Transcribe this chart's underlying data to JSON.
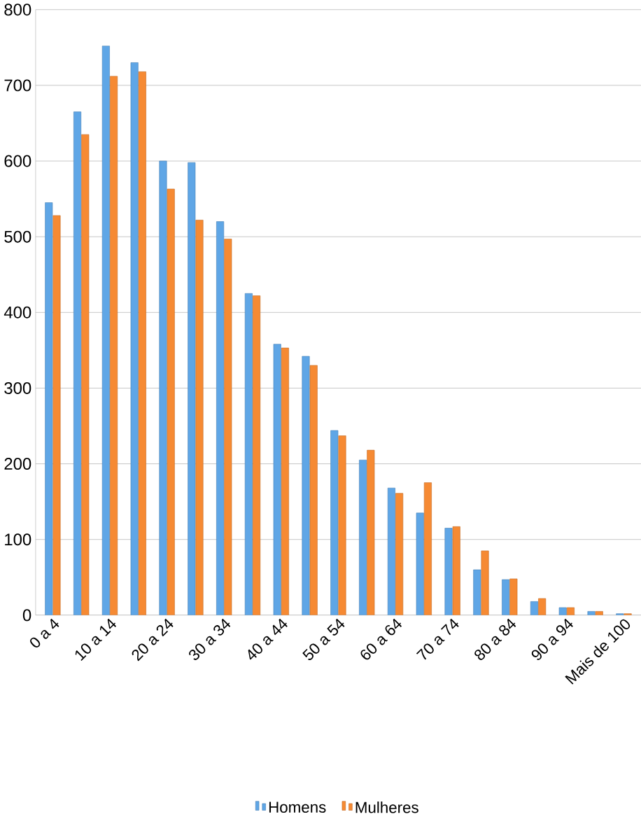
{
  "chart_data": {
    "type": "bar",
    "categories": [
      "0 a 4",
      null,
      "10 a 14",
      null,
      "20 a 24",
      null,
      "30 a 34",
      null,
      "40 a 44",
      null,
      "50 a 54",
      null,
      "60 a 64",
      null,
      "70 a 74",
      null,
      "80 a 84",
      null,
      "90 a 94",
      null,
      "Mais de 100"
    ],
    "series": [
      {
        "name": "Homens",
        "color": "#5fa6e6",
        "values": [
          545,
          665,
          752,
          730,
          600,
          598,
          520,
          425,
          358,
          342,
          244,
          205,
          168,
          135,
          115,
          60,
          47,
          18,
          10,
          5,
          2
        ]
      },
      {
        "name": "Mulheres",
        "color": "#f68a33",
        "values": [
          528,
          635,
          712,
          718,
          563,
          522,
          497,
          422,
          353,
          330,
          237,
          218,
          161,
          175,
          117,
          85,
          48,
          22,
          10,
          5,
          2
        ]
      }
    ],
    "ylim": [
      0,
      800
    ],
    "yticks": [
      0,
      100,
      200,
      300,
      400,
      500,
      600,
      700,
      800
    ],
    "grid": "y",
    "legend": "bottom"
  }
}
